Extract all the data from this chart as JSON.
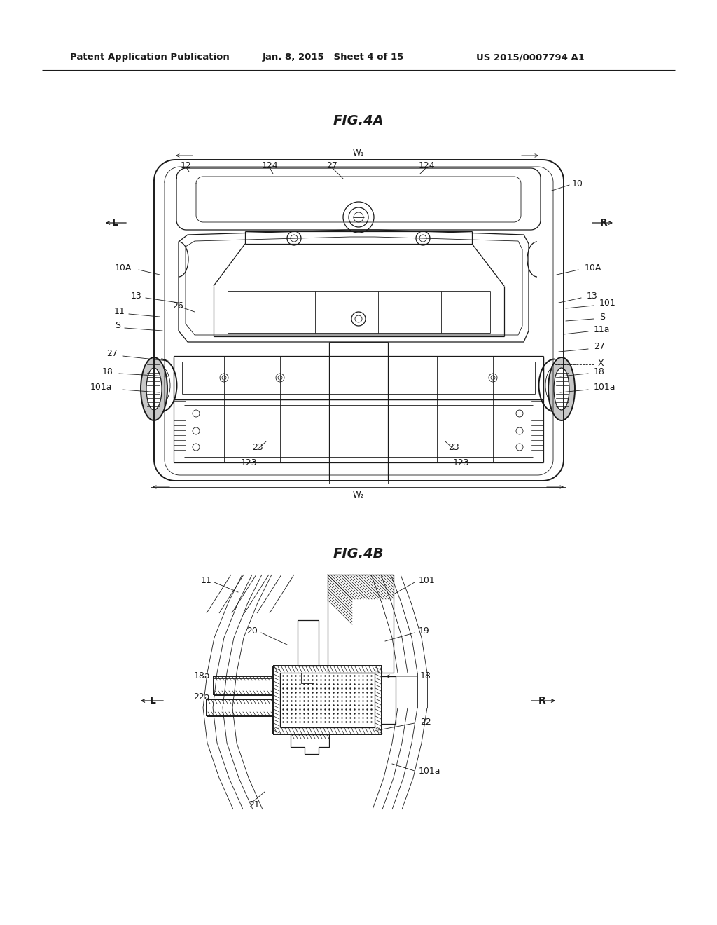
{
  "bg_color": "#ffffff",
  "line_color": "#1a1a1a",
  "header_left": "Patent Application Publication",
  "header_mid": "Jan. 8, 2015   Sheet 4 of 15",
  "header_right": "US 2015/0007794 A1",
  "fig4a_title": "FIG.4A",
  "fig4b_title": "FIG.4B",
  "fig_width": 10.24,
  "fig_height": 13.2,
  "dpi": 100
}
